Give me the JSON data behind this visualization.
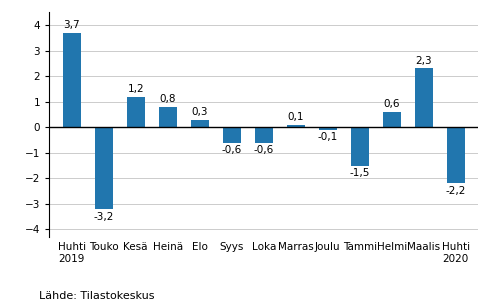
{
  "categories": [
    "Huhti\n2019",
    "Touko",
    "Kesä",
    "Heinä",
    "Elo",
    "Syys",
    "Loka",
    "Marras",
    "Joulu",
    "Tammi",
    "Helmi",
    "Maalis",
    "Huhti\n2020"
  ],
  "values": [
    3.7,
    -3.2,
    1.2,
    0.8,
    0.3,
    -0.6,
    -0.6,
    0.1,
    -0.1,
    -1.5,
    0.6,
    2.3,
    -2.2
  ],
  "bar_color": "#2176AE",
  "ylim": [
    -4.3,
    4.5
  ],
  "yticks": [
    -4,
    -3,
    -2,
    -1,
    0,
    1,
    2,
    3,
    4
  ],
  "footer": "Lähde: Tilastokeskus",
  "background_color": "#ffffff",
  "grid_color": "#cccccc",
  "label_fontsize": 7.5,
  "tick_fontsize": 7.5,
  "footer_fontsize": 8.0,
  "bar_width": 0.55
}
